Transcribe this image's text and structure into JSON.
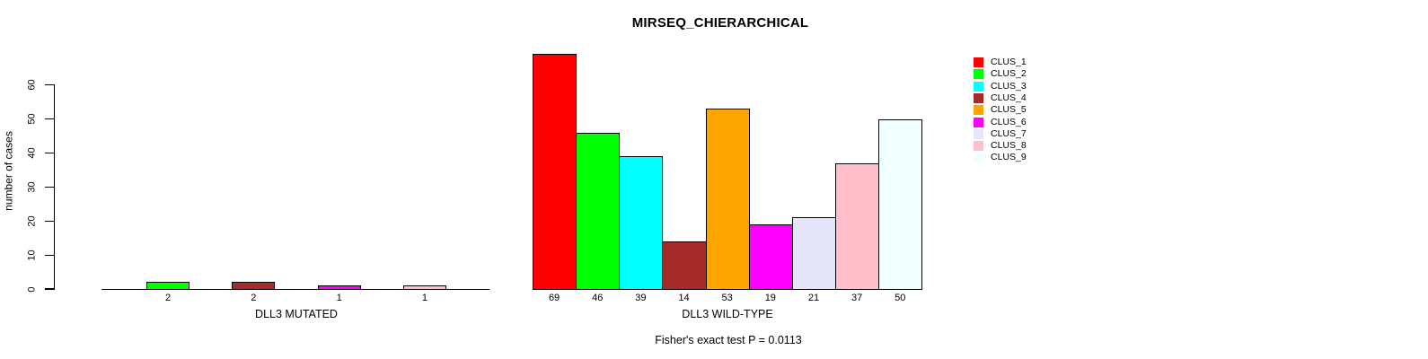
{
  "title": "MIRSEQ_CHIERARCHICAL",
  "footnote": "Fisher's exact test P = 0.0113",
  "y_axis": {
    "label": "number of cases",
    "ticks": [
      0,
      10,
      20,
      30,
      40,
      50,
      60
    ],
    "ylim": [
      0,
      60
    ]
  },
  "legend": {
    "position": "right",
    "items": [
      {
        "label": "CLUS_1",
        "color": "#FF0000"
      },
      {
        "label": "CLUS_2",
        "color": "#00FF00"
      },
      {
        "label": "CLUS_3",
        "color": "#00FFFF"
      },
      {
        "label": "CLUS_4",
        "color": "#A52A2A"
      },
      {
        "label": "CLUS_5",
        "color": "#FFA500"
      },
      {
        "label": "CLUS_6",
        "color": "#FF00FF"
      },
      {
        "label": "CLUS_7",
        "color": "#E6E6FA"
      },
      {
        "label": "CLUS_8",
        "color": "#FFC0CB"
      },
      {
        "label": "CLUS_9",
        "color": "#F0FFFF"
      }
    ]
  },
  "chart_data": [
    {
      "type": "bar",
      "title": "MIRSEQ_CHIERARCHICAL",
      "xlabel": "DLL3 MUTATED",
      "ylabel": "number of cases",
      "ylim": [
        0,
        60
      ],
      "grid": false,
      "categories": [
        "CLUS_2",
        "CLUS_4",
        "CLUS_6",
        "CLUS_8"
      ],
      "values": [
        2,
        2,
        1,
        1
      ],
      "colors": [
        "#00FF00",
        "#A52A2A",
        "#FF00FF",
        "#FFC0CB"
      ],
      "bar_labels": [
        "2",
        "2",
        "1",
        "1"
      ]
    },
    {
      "type": "bar",
      "title": "MIRSEQ_CHIERARCHICAL",
      "xlabel": "DLL3 WILD-TYPE",
      "ylabel": "number of cases",
      "ylim": [
        0,
        60
      ],
      "grid": false,
      "categories": [
        "CLUS_1",
        "CLUS_2",
        "CLUS_3",
        "CLUS_4",
        "CLUS_5",
        "CLUS_6",
        "CLUS_7",
        "CLUS_8",
        "CLUS_9"
      ],
      "values": [
        69,
        46,
        39,
        14,
        53,
        19,
        21,
        37,
        50
      ],
      "colors": [
        "#FF0000",
        "#00FF00",
        "#00FFFF",
        "#A52A2A",
        "#FFA500",
        "#FF00FF",
        "#E6E6FA",
        "#FFC0CB",
        "#F0FFFF"
      ],
      "bar_labels": [
        "69",
        "46",
        "39",
        "14",
        "53",
        "19",
        "21",
        "37",
        "50"
      ]
    }
  ]
}
